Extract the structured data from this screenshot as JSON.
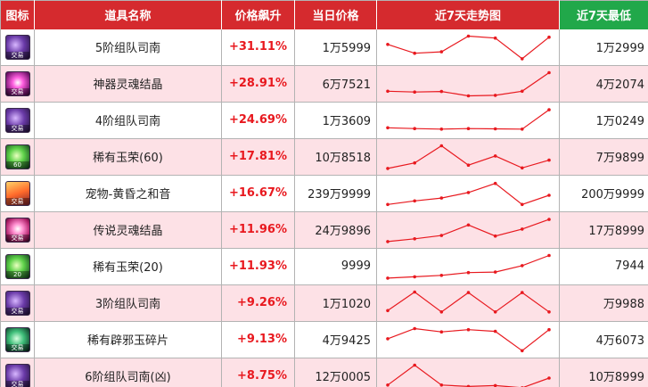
{
  "header": {
    "icon": "图标",
    "name": "道具名称",
    "change": "价格飙升",
    "price": "当日价格",
    "trend": "近7天走势图",
    "low": "近7天最低"
  },
  "colors": {
    "header_red": "#d52a2e",
    "header_green": "#21a84a",
    "row_pink": "#fde1e6",
    "change_red": "#e8191f",
    "trend_line": "#e8191f"
  },
  "rows": [
    {
      "icon": "purple-scroll-icon",
      "icon_tag": "交易",
      "name": "5阶组队司南",
      "change": "+31.11%",
      "price": "1万5999",
      "low": "1万2999",
      "trend": [
        0.62,
        0.3,
        0.35,
        0.92,
        0.85,
        0.1,
        0.88
      ]
    },
    {
      "icon": "magenta-crystal-icon",
      "icon_tag": "交易",
      "name": "神器灵魂结晶",
      "change": "+28.91%",
      "price": "6万7521",
      "low": "4万2074",
      "trend": [
        0.25,
        0.22,
        0.24,
        0.08,
        0.1,
        0.25,
        0.92
      ]
    },
    {
      "icon": "purple-scroll-icon",
      "icon_tag": "交易",
      "name": "4阶组队司南",
      "change": "+24.69%",
      "price": "1万3609",
      "low": "1万0249",
      "trend": [
        0.25,
        0.22,
        0.2,
        0.22,
        0.21,
        0.2,
        0.9
      ]
    },
    {
      "icon": "green-jade-icon",
      "icon_tag": "60",
      "name": "稀有玉荣(60)",
      "change": "+17.81%",
      "price": "10万8518",
      "low": "7万9899",
      "trend": [
        0.1,
        0.3,
        0.92,
        0.22,
        0.55,
        0.12,
        0.4
      ]
    },
    {
      "icon": "sunset-pet-icon",
      "icon_tag": "交易",
      "name": "宠物-黄昏之和音",
      "change": "+16.67%",
      "price": "239万9999",
      "low": "200万9999",
      "trend": [
        0.12,
        0.25,
        0.35,
        0.55,
        0.88,
        0.12,
        0.45
      ]
    },
    {
      "icon": "pink-crystal-icon",
      "icon_tag": "交易",
      "name": "传说灵魂结晶",
      "change": "+11.96%",
      "price": "24万9896",
      "low": "17万8999",
      "trend": [
        0.1,
        0.2,
        0.32,
        0.7,
        0.3,
        0.55,
        0.9
      ]
    },
    {
      "icon": "green-jade-icon",
      "icon_tag": "20",
      "name": "稀有玉荣(20)",
      "change": "+11.93%",
      "price": "9999",
      "low": "7944",
      "trend": [
        0.1,
        0.15,
        0.2,
        0.3,
        0.32,
        0.55,
        0.92
      ]
    },
    {
      "icon": "purple-scroll-icon",
      "icon_tag": "交易",
      "name": "3阶组队司南",
      "change": "+9.26%",
      "price": "1万1020",
      "low": "万9988",
      "trend": [
        0.25,
        0.92,
        0.2,
        0.9,
        0.2,
        0.9,
        0.2
      ]
    },
    {
      "icon": "green-orb-icon",
      "icon_tag": "交易",
      "name": "稀有辟邪玉碎片",
      "change": "+9.13%",
      "price": "4万9425",
      "low": "4万6073",
      "trend": [
        0.55,
        0.92,
        0.8,
        0.88,
        0.82,
        0.12,
        0.88
      ]
    },
    {
      "icon": "purple-scroll-icon",
      "icon_tag": "交易",
      "name": "6阶组队司南(凶)",
      "change": "+8.75%",
      "price": "12万0005",
      "low": "10万8999",
      "trend": [
        0.2,
        0.92,
        0.2,
        0.15,
        0.18,
        0.1,
        0.45
      ]
    }
  ]
}
